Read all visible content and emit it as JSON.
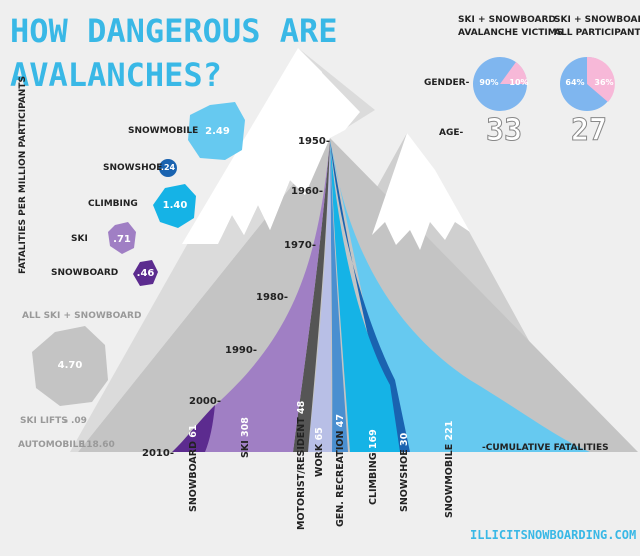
{
  "title_line1": "HOW DANGEROUS ARE",
  "title_line2": "AVALANCHES?",
  "y_axis_label": "FATALITIES PER MILLION PARTICIPANTS",
  "rates": [
    {
      "label": "SNOWMOBILE",
      "value": "2.49",
      "color": "#66c9f0"
    },
    {
      "label": "SNOWSHOE",
      "value": ".24",
      "color": "#1a63b0"
    },
    {
      "label": "CLIMBING",
      "value": "1.40",
      "color": "#15b3e6"
    },
    {
      "label": "SKI",
      "value": ".71",
      "color": "#a07fc4"
    },
    {
      "label": "SNOWBOARD",
      "value": ".46",
      "color": "#5c2b8f"
    }
  ],
  "all_ski_label": "ALL SKI + SNOWBOARD",
  "all_ski_value": "4.70",
  "ski_lifts_label": "SKI LIFTS",
  "ski_lifts_value": ".09",
  "automobile_label": "AUTOMOBILE",
  "automobile_value": "118.60",
  "col1_header_line1": "SKI + SNOWBOARD",
  "col1_header_line2": "AVALANCHE VICTIMS",
  "col2_header_line1": "SKI + SNOWBOARD",
  "col2_header_line2": "ALL PARTICIPANTS",
  "gender_label": "GENDER-",
  "age_label": "AGE-",
  "victims_gender": {
    "male": "90%",
    "female": "10%"
  },
  "participants_gender": {
    "male": "64%",
    "female": "36%"
  },
  "victims_age": "33",
  "participants_age": "27",
  "years": [
    "1950-",
    "1960-",
    "1970-",
    "1980-",
    "1990-",
    "2000-",
    "2010-"
  ],
  "cumulative_label": "-CUMULATIVE FATALITIES",
  "categories": [
    {
      "label": "SNOWBOARD",
      "value": "61"
    },
    {
      "label": "SKI",
      "value": "308"
    },
    {
      "label": "MOTORIST/RESIDENT",
      "value": "48"
    },
    {
      "label": "WORK",
      "value": "65"
    },
    {
      "label": "GEN. RECREATION",
      "value": "47"
    },
    {
      "label": "CLIMBING",
      "value": "169"
    },
    {
      "label": "SNOWSHOE",
      "value": "30"
    },
    {
      "label": "SNOWMOBILE",
      "value": "221"
    }
  ],
  "footer": "ILLICITSNOWBOARDING.COM",
  "colors": {
    "title": "#39b8e6",
    "mountain": "#c8c8c8",
    "snow": "#ffffff",
    "snowboard": "#5c2b8f",
    "ski": "#a07fc4",
    "motorist": "#555555",
    "work": "#b8bfe6",
    "gen_recreation": "#4a8fd0",
    "climbing": "#15b3e6",
    "snowshoe": "#1a63b0",
    "snowmobile": "#66c9f0",
    "male": "#7fb6ef",
    "female": "#f7b8d8"
  }
}
